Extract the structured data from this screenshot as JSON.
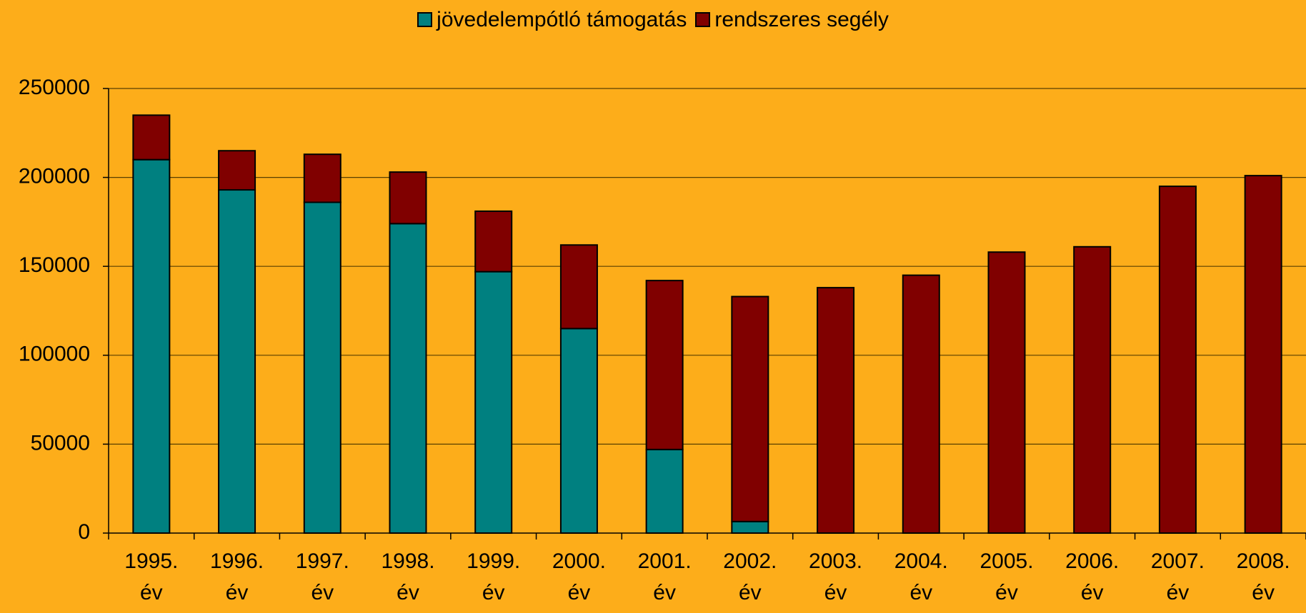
{
  "chart_data": {
    "type": "stacked-bar",
    "categories": [
      "1995. év",
      "1996. év",
      "1997. év",
      "1998. év",
      "1999. év",
      "2000. év",
      "2001. év",
      "2002. év",
      "2003. év",
      "2004. év",
      "2005. év",
      "2006. év",
      "2007. év",
      "2008. év"
    ],
    "series": [
      {
        "name": "jövedelempótló támogatás",
        "color": "#008080",
        "values": [
          210000,
          193000,
          186000,
          174000,
          147000,
          115000,
          47000,
          6500,
          0,
          0,
          0,
          0,
          0,
          0
        ]
      },
      {
        "name": "rendszeres segély",
        "color": "#800000",
        "values": [
          25000,
          22000,
          27000,
          29000,
          34000,
          47000,
          95000,
          126500,
          138000,
          145000,
          158000,
          161000,
          195000,
          201000
        ]
      }
    ],
    "ylim": [
      0,
      250000
    ],
    "yticks": [
      0,
      50000,
      100000,
      150000,
      200000,
      250000
    ],
    "grid": true,
    "legend": "top"
  }
}
